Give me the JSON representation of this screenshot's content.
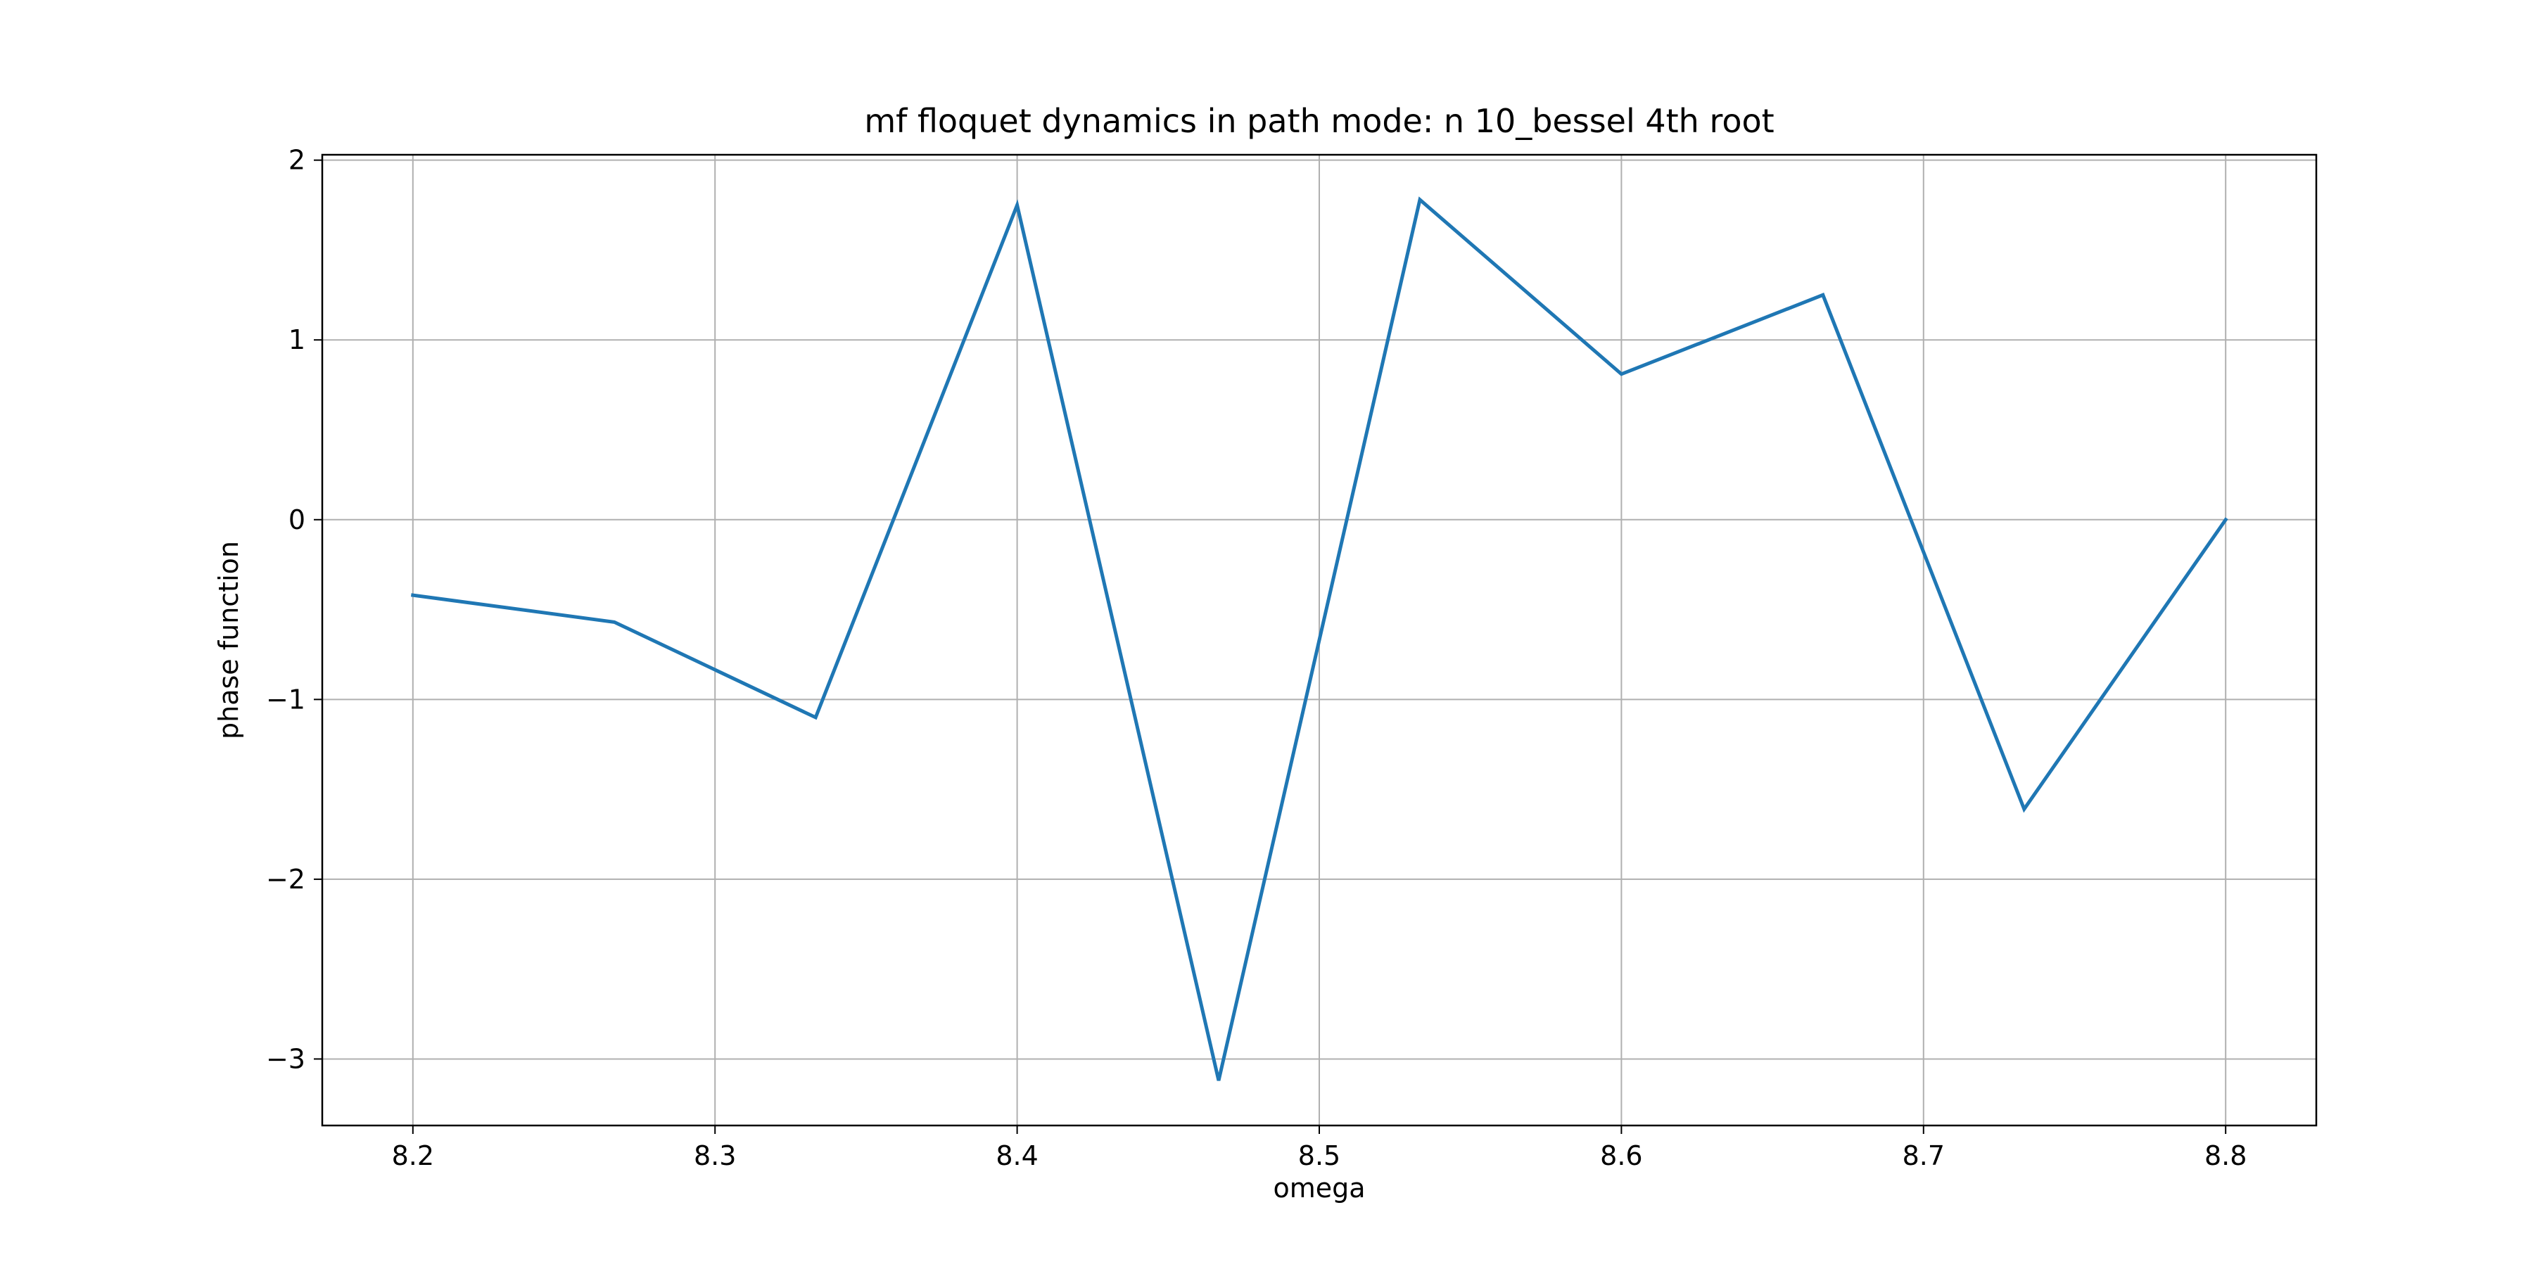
{
  "chart_data": {
    "type": "line",
    "title": "mf floquet dynamics in path mode: n 10_bessel 4th root",
    "xlabel": "omega",
    "ylabel": "phase function",
    "xlim": [
      8.17,
      8.83
    ],
    "ylim": [
      -3.37,
      2.03
    ],
    "xticks": [
      8.2,
      8.3,
      8.4,
      8.5,
      8.6,
      8.7,
      8.8
    ],
    "xtick_labels": [
      "8.2",
      "8.3",
      "8.4",
      "8.5",
      "8.6",
      "8.7",
      "8.8"
    ],
    "yticks": [
      -3,
      -2,
      -1,
      0,
      1,
      2
    ],
    "ytick_labels": [
      "−3",
      "−2",
      "−1",
      "0",
      "1",
      "2"
    ],
    "grid": true,
    "series": [
      {
        "color": "#1f77b4",
        "x": [
          8.2,
          8.2667,
          8.3333,
          8.4,
          8.4667,
          8.5333,
          8.6,
          8.6667,
          8.7333,
          8.8
        ],
        "y": [
          -0.42,
          -0.57,
          -1.1,
          1.75,
          -3.12,
          1.78,
          0.81,
          1.25,
          -1.61,
          0.0
        ]
      }
    ]
  }
}
